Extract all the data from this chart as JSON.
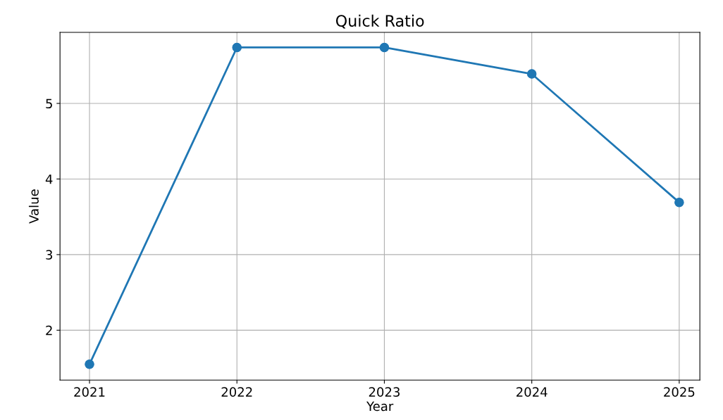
{
  "chart_data": {
    "type": "line",
    "title": "Quick Ratio",
    "xlabel": "Year",
    "ylabel": "Value",
    "x": [
      2021,
      2022,
      2023,
      2024,
      2025
    ],
    "series": [
      {
        "color": "#1f77b4",
        "values": [
          1.55,
          5.74,
          5.74,
          5.39,
          3.69
        ]
      }
    ],
    "xlim": [
      2020.8,
      2025.14
    ],
    "xticks": [
      2021,
      2022,
      2023,
      2024,
      2025
    ],
    "ylim": [
      1.34,
      5.94
    ],
    "yticks": [
      2,
      3,
      4,
      5
    ],
    "grid": true,
    "marker": "circle",
    "line_style": "solid"
  }
}
